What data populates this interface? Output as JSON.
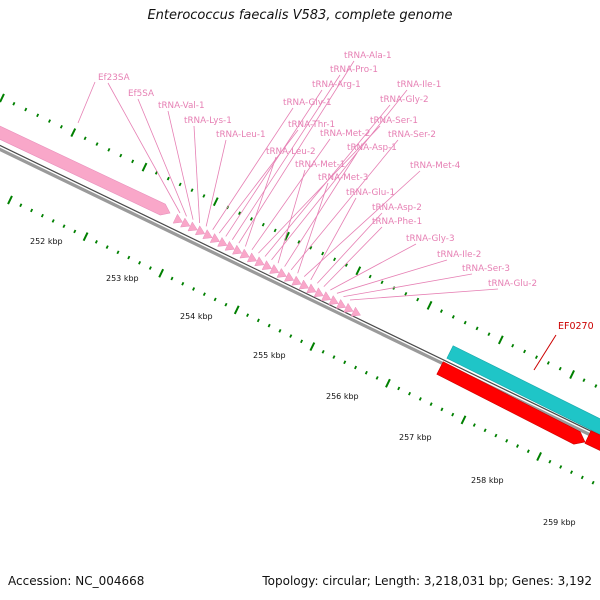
{
  "title": "Enterococcus faecalis V583, complete genome",
  "footer": {
    "accession": "Accession: NC_004668",
    "summary": "Topology: circular; Length: 3,218,031 bp; Genes: 3,192"
  },
  "colors": {
    "rna_feature": "#f9a7c9",
    "rna_label": "#e680b4",
    "forward_gene": "#1fc5c7",
    "reverse_gene": "#ff0000",
    "highlight_label": "#cc0000",
    "tick_marks": "#008000",
    "backbone": "#808080"
  },
  "ruler": {
    "unit": "kbp",
    "labels": [
      "252 kbp",
      "253 kbp",
      "254 kbp",
      "255 kbp",
      "256 kbp",
      "257 kbp",
      "258 kbp",
      "259 kbp"
    ]
  },
  "features": {
    "rrna": [
      {
        "name": "Ef23SA"
      },
      {
        "name": "Ef5SA"
      }
    ],
    "trna": [
      {
        "name": "tRNA-Val-1"
      },
      {
        "name": "tRNA-Lys-1"
      },
      {
        "name": "tRNA-Leu-1"
      },
      {
        "name": "tRNA-Gly-1"
      },
      {
        "name": "tRNA-Thr-1"
      },
      {
        "name": "tRNA-Arg-1"
      },
      {
        "name": "tRNA-Pro-1"
      },
      {
        "name": "tRNA-Ala-1"
      },
      {
        "name": "tRNA-Leu-2"
      },
      {
        "name": "tRNA-Met-2"
      },
      {
        "name": "tRNA-Ser-1"
      },
      {
        "name": "tRNA-Gly-2"
      },
      {
        "name": "tRNA-Ile-1"
      },
      {
        "name": "tRNA-Met-1"
      },
      {
        "name": "tRNA-Asp-1"
      },
      {
        "name": "tRNA-Ser-2"
      },
      {
        "name": "tRNA-Met-3"
      },
      {
        "name": "tRNA-Met-4"
      },
      {
        "name": "tRNA-Glu-1"
      },
      {
        "name": "tRNA-Asp-2"
      },
      {
        "name": "tRNA-Phe-1"
      },
      {
        "name": "tRNA-Gly-3"
      },
      {
        "name": "tRNA-Ile-2"
      },
      {
        "name": "tRNA-Ser-3"
      },
      {
        "name": "tRNA-Glu-2"
      }
    ],
    "genes": [
      {
        "name": "EF0270"
      }
    ]
  }
}
